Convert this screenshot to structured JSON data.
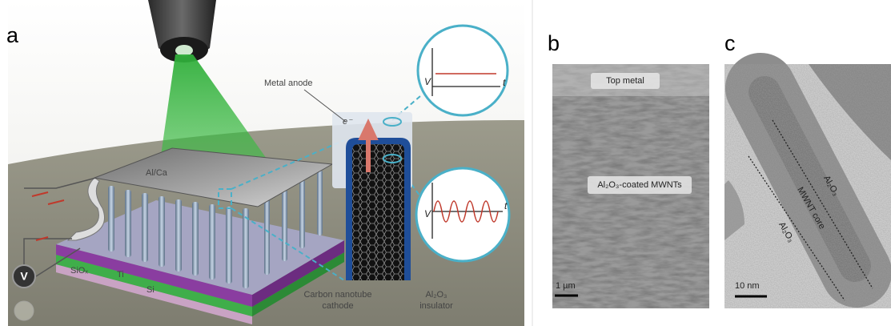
{
  "panels": {
    "a": {
      "label": "a",
      "metal_anode": "Metal anode",
      "sheet": "Al/Ca",
      "electron": "e⁻",
      "meter": "V",
      "layers": [
        "SiOₓ",
        "Ti",
        "Si"
      ],
      "cathode": [
        "Carbon nanotube",
        "cathode"
      ],
      "insulator": [
        "Al₂O₃",
        "insulator"
      ],
      "plot_top": {
        "y_axis": "V",
        "x_axis": "t"
      },
      "plot_bottom": {
        "y_axis": "V",
        "x_axis": "t"
      }
    },
    "b": {
      "label": "b",
      "top_label": "Top metal",
      "middle_label": "Al₂O₃-coated MWNTs",
      "scale_bar": "1 µm"
    },
    "c": {
      "label": "c",
      "shell_upper": "Al₂O₃",
      "core": "MWNT core",
      "shell_lower": "Al₂O₃",
      "scale_bar": "10 nm"
    }
  }
}
